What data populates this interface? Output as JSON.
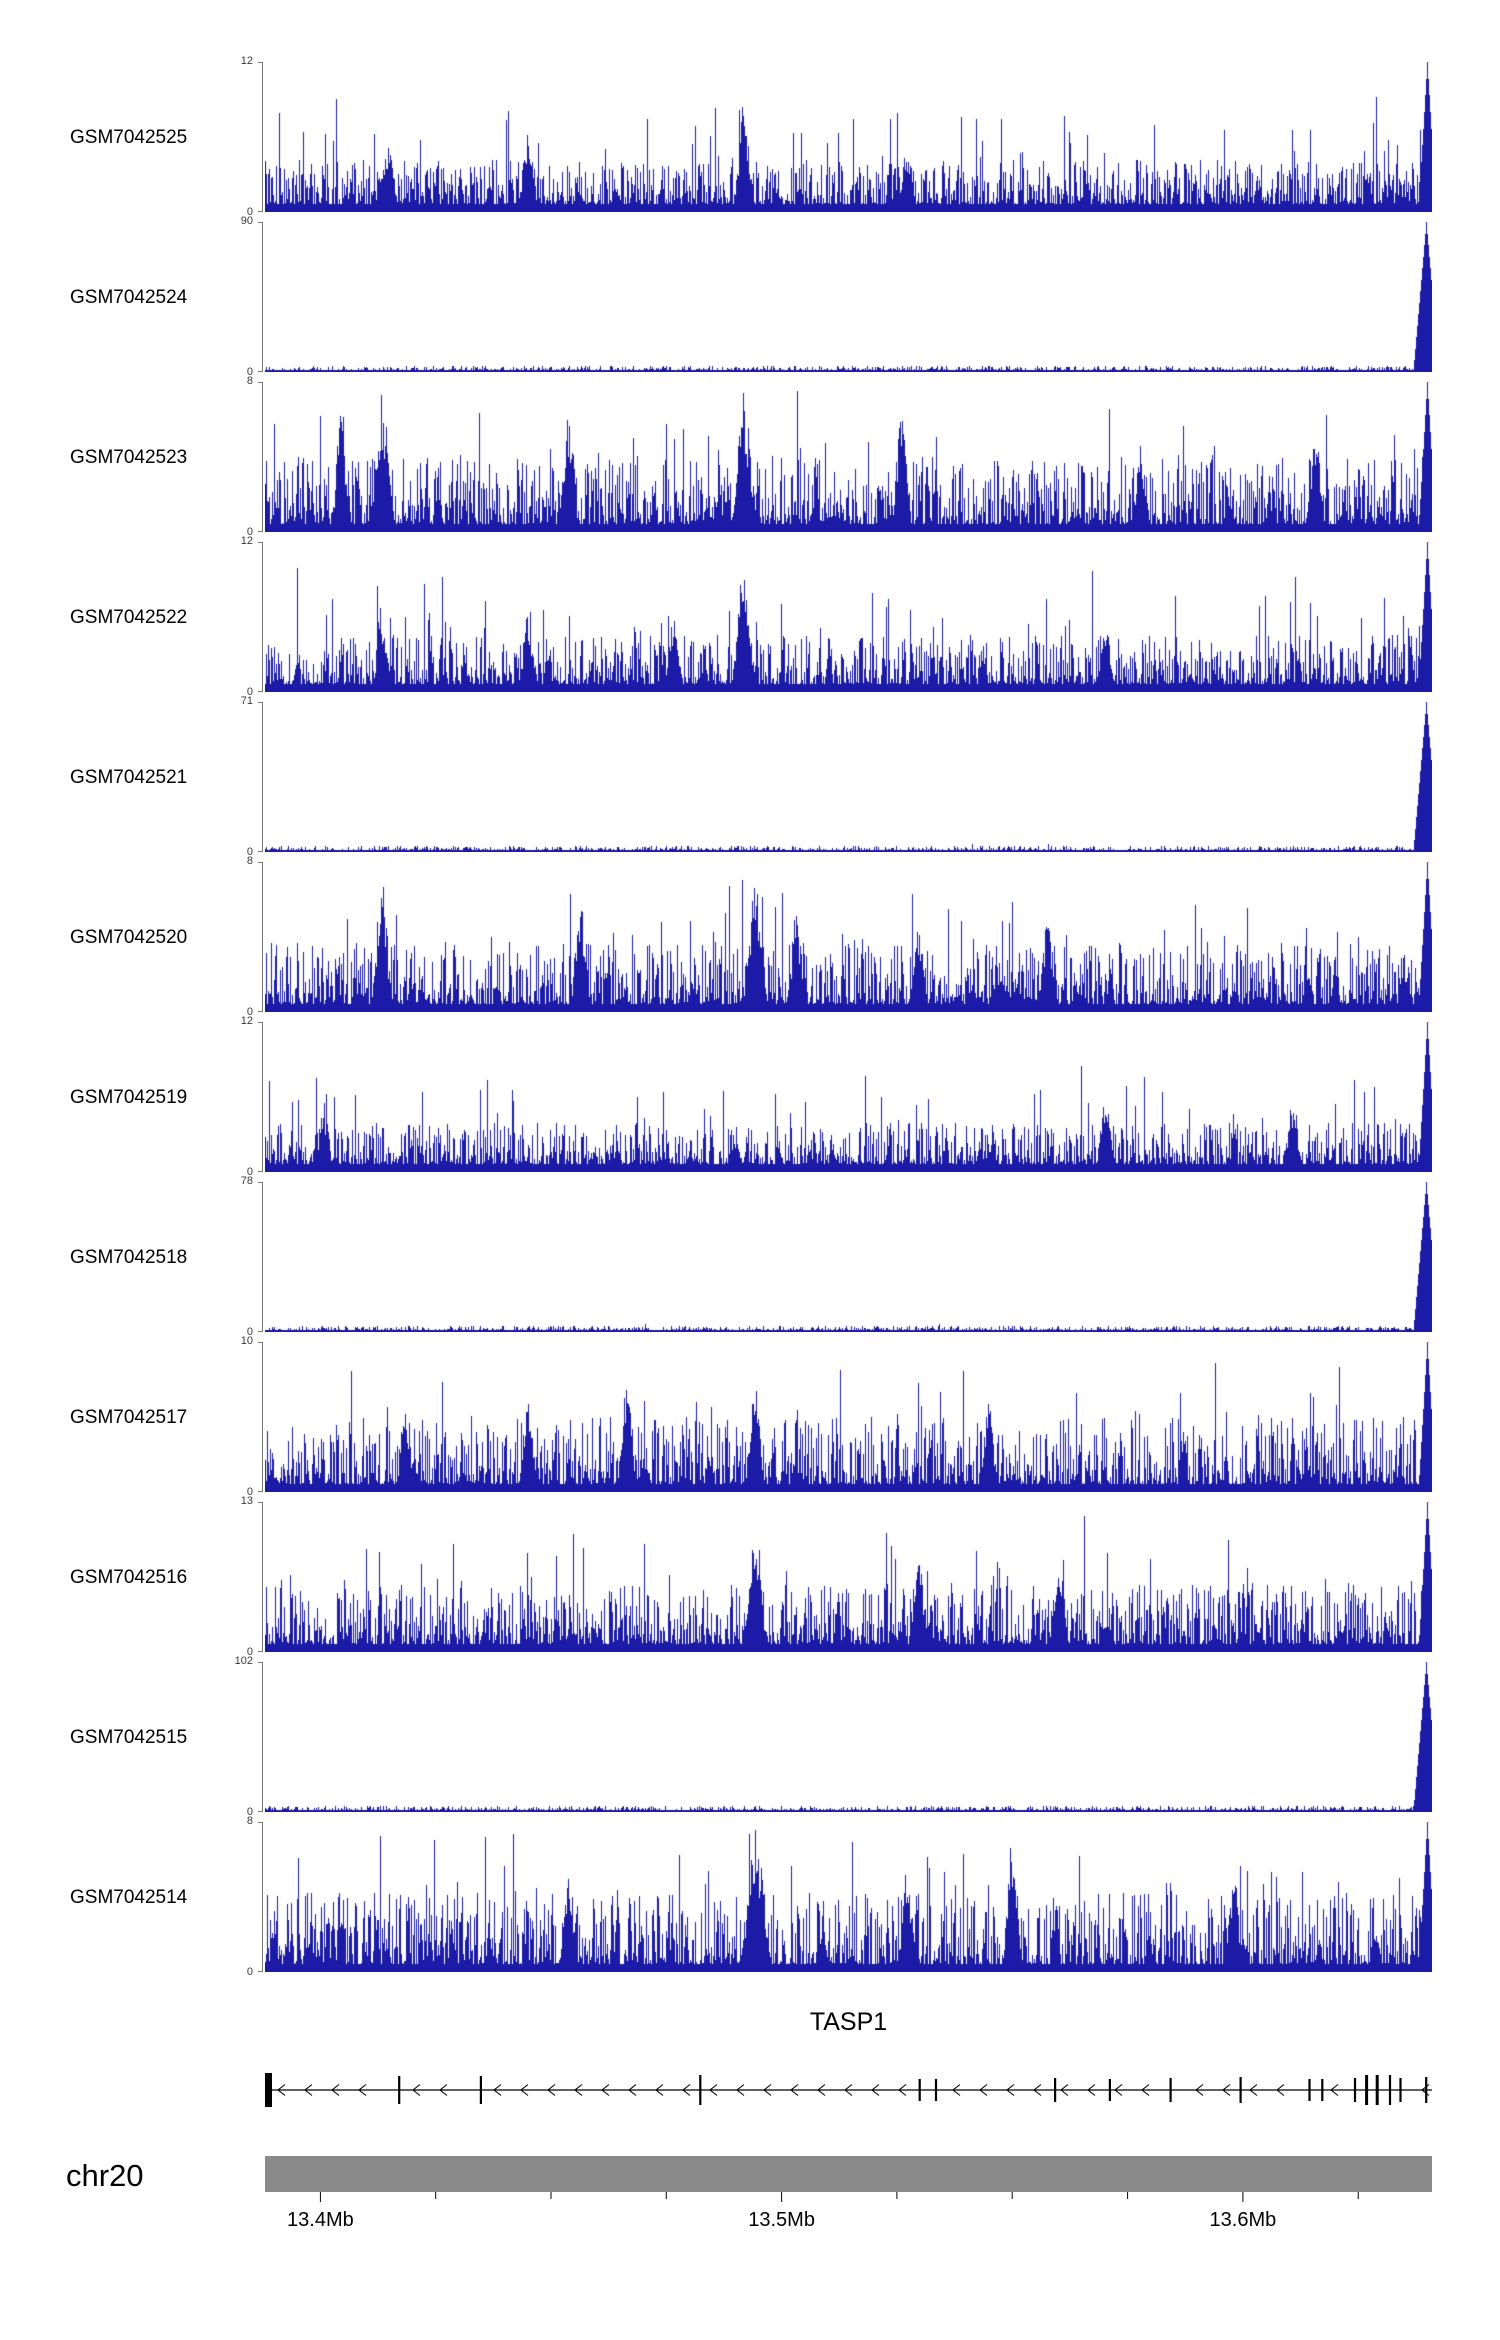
{
  "chart_data": {
    "type": "area",
    "subtype": "genome-browser-coverage-tracks",
    "title": "",
    "colors": {
      "signal": "#1b1ba8",
      "gene": "#000000",
      "chromosome_bar": "#8a8a8a",
      "axis_text": "#3a3a3a"
    },
    "region": {
      "chromosome": "chr20",
      "x_start_mb": 13.388,
      "x_end_mb": 13.641,
      "tick_values_mb": [
        13.4,
        13.5,
        13.6
      ],
      "tick_labels": [
        "13.4Mb",
        "13.5Mb",
        "13.6Mb"
      ],
      "minor_tick_step_mb": 0.025
    },
    "gene_track": {
      "name": "TASP1",
      "strand": "-",
      "exons": [
        {
          "pos": 0.003,
          "w": 7,
          "h": 34
        },
        {
          "pos": 0.115,
          "h": 28
        },
        {
          "pos": 0.185,
          "h": 28
        },
        {
          "pos": 0.373,
          "h": 30
        },
        {
          "pos": 0.561,
          "h": 22
        },
        {
          "pos": 0.575,
          "h": 22
        },
        {
          "pos": 0.677,
          "h": 24
        },
        {
          "pos": 0.724,
          "h": 22
        },
        {
          "pos": 0.776,
          "h": 24
        },
        {
          "pos": 0.836,
          "h": 26
        },
        {
          "pos": 0.895,
          "h": 22
        },
        {
          "pos": 0.906,
          "h": 22
        },
        {
          "pos": 0.934,
          "h": 24
        },
        {
          "pos": 0.944,
          "h": 30,
          "w": 3
        },
        {
          "pos": 0.953,
          "h": 30,
          "w": 3
        },
        {
          "pos": 0.964,
          "h": 30
        },
        {
          "pos": 0.973,
          "h": 24
        },
        {
          "pos": 0.995,
          "h": 26
        }
      ]
    },
    "tracks": [
      {
        "name": "GSM7042525",
        "ymax": 12,
        "ymin": 0,
        "profile": "dense",
        "grass": 0.3,
        "right_edge_peak": true,
        "peaks": [
          {
            "pos": 0.105,
            "h": 0.5
          },
          {
            "pos": 0.225,
            "h": 0.55
          },
          {
            "pos": 0.41,
            "h": 0.82
          },
          {
            "pos": 0.55,
            "h": 0.45
          }
        ]
      },
      {
        "name": "GSM7042524",
        "ymax": 90,
        "ymin": 0,
        "profile": "input-flat",
        "right_edge_peak": true,
        "peaks": []
      },
      {
        "name": "GSM7042523",
        "ymax": 8,
        "ymin": 0,
        "profile": "dense",
        "grass": 0.45,
        "right_edge_peak": true,
        "peaks": [
          {
            "pos": 0.065,
            "h": 0.85
          },
          {
            "pos": 0.1,
            "h": 0.95,
            "w": 0.005
          },
          {
            "pos": 0.26,
            "h": 0.88
          },
          {
            "pos": 0.41,
            "h": 0.95,
            "w": 0.005
          },
          {
            "pos": 0.545,
            "h": 0.85
          },
          {
            "pos": 0.75,
            "h": 0.6
          },
          {
            "pos": 0.9,
            "h": 0.72
          }
        ]
      },
      {
        "name": "GSM7042522",
        "ymax": 12,
        "ymin": 0,
        "profile": "dense",
        "grass": 0.33,
        "right_edge_peak": true,
        "peaks": [
          {
            "pos": 0.1,
            "h": 0.5
          },
          {
            "pos": 0.225,
            "h": 0.55
          },
          {
            "pos": 0.35,
            "h": 0.5
          },
          {
            "pos": 0.41,
            "h": 0.86,
            "w": 0.005
          },
          {
            "pos": 0.72,
            "h": 0.5
          }
        ]
      },
      {
        "name": "GSM7042521",
        "ymax": 71,
        "ymin": 0,
        "profile": "input-flat",
        "right_edge_peak": true,
        "peaks": []
      },
      {
        "name": "GSM7042520",
        "ymax": 8,
        "ymin": 0,
        "profile": "dense",
        "grass": 0.42,
        "right_edge_peak": true,
        "peaks": [
          {
            "pos": 0.1,
            "h": 1.0,
            "w": 0.004
          },
          {
            "pos": 0.27,
            "h": 0.78
          },
          {
            "pos": 0.42,
            "h": 0.92,
            "w": 0.005
          },
          {
            "pos": 0.455,
            "h": 0.7
          },
          {
            "pos": 0.56,
            "h": 0.6
          },
          {
            "pos": 0.67,
            "h": 0.62
          }
        ]
      },
      {
        "name": "GSM7042519",
        "ymax": 12,
        "ymin": 0,
        "profile": "dense",
        "grass": 0.28,
        "right_edge_peak": true,
        "peaks": [
          {
            "pos": 0.05,
            "h": 0.45
          },
          {
            "pos": 0.72,
            "h": 0.55
          },
          {
            "pos": 0.88,
            "h": 0.45
          }
        ]
      },
      {
        "name": "GSM7042518",
        "ymax": 78,
        "ymin": 0,
        "profile": "input-flat",
        "right_edge_peak": true,
        "peaks": []
      },
      {
        "name": "GSM7042517",
        "ymax": 10,
        "ymin": 0,
        "profile": "dense",
        "grass": 0.45,
        "right_edge_peak": true,
        "peaks": [
          {
            "pos": 0.12,
            "h": 0.6
          },
          {
            "pos": 0.225,
            "h": 0.65
          },
          {
            "pos": 0.31,
            "h": 0.8
          },
          {
            "pos": 0.42,
            "h": 0.75
          },
          {
            "pos": 0.62,
            "h": 0.6
          }
        ]
      },
      {
        "name": "GSM7042516",
        "ymax": 13,
        "ymin": 0,
        "profile": "dense",
        "grass": 0.4,
        "right_edge_peak": true,
        "peaks": [
          {
            "pos": 0.42,
            "h": 0.85,
            "w": 0.005
          },
          {
            "pos": 0.56,
            "h": 0.6
          },
          {
            "pos": 0.68,
            "h": 0.72
          }
        ]
      },
      {
        "name": "GSM7042515",
        "ymax": 102,
        "ymin": 0,
        "profile": "input-flat",
        "right_edge_peak": true,
        "peaks": []
      },
      {
        "name": "GSM7042514",
        "ymax": 8,
        "ymin": 0,
        "profile": "dense",
        "grass": 0.48,
        "right_edge_peak": true,
        "peaks": [
          {
            "pos": 0.26,
            "h": 0.7
          },
          {
            "pos": 0.42,
            "h": 1.0,
            "w": 0.006
          },
          {
            "pos": 0.55,
            "h": 0.7
          },
          {
            "pos": 0.64,
            "h": 1.0,
            "w": 0.004
          },
          {
            "pos": 0.83,
            "h": 0.65
          }
        ]
      }
    ]
  }
}
